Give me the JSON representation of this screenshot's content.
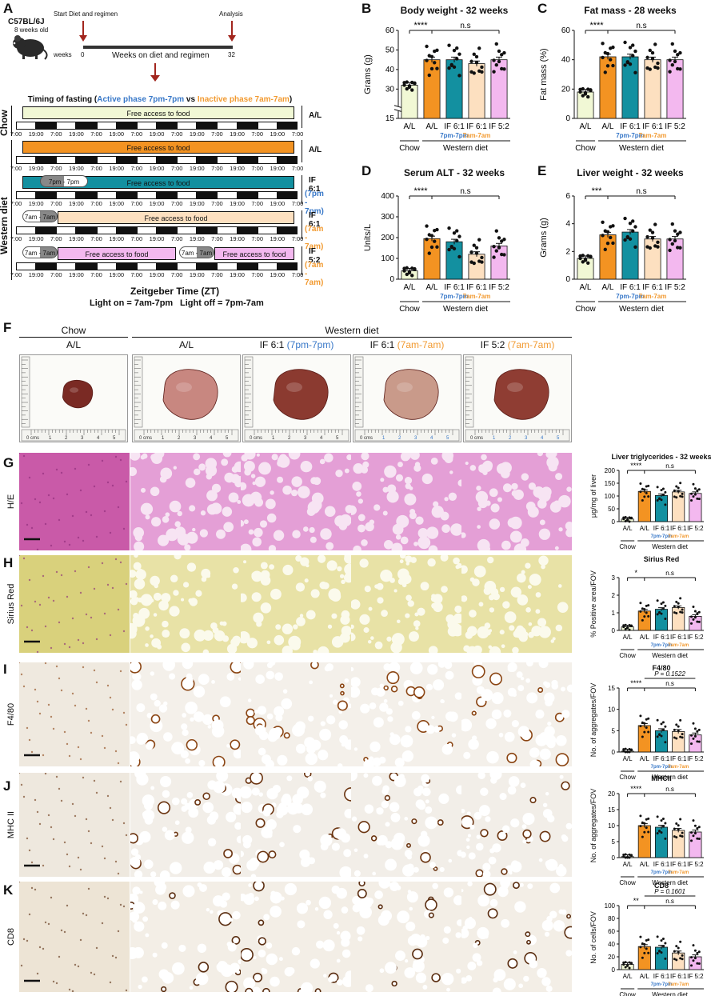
{
  "panels": {
    "A": "A",
    "B": "B",
    "C": "C",
    "D": "D",
    "E": "E",
    "F": "F",
    "G": "G",
    "H": "H",
    "I": "I",
    "J": "J",
    "K": "K"
  },
  "panelA": {
    "mouse_strain": "C57BL/6J",
    "mouse_age": "8 weeks old",
    "start_label": "Start Diet and regimen",
    "analysis_label": "Analysis",
    "weeks_label": "weeks",
    "week0": "0",
    "week32": "32",
    "timeline_label": "Weeks on diet and regimen",
    "fasting_title_pre": "Timing of fasting (",
    "fasting_active": "Active phase 7pm-7pm",
    "fasting_vs": " vs ",
    "fasting_inactive": "Inactive phase 7am-7am",
    "fasting_close": ")",
    "chow_label": "Chow",
    "western_label": "Western diet",
    "free_access": "Free access to food",
    "fast_active_label": "7pm - 7pm",
    "fast_inactive_label": "7am - 7am",
    "ticks": [
      "7:00",
      "19:00",
      "7:00",
      "19:00",
      "7:00",
      "19:00",
      "7:00",
      "19:00",
      "7:00",
      "19:00",
      "7:00",
      "19:00",
      "7:00",
      "19:00",
      "7:00"
    ],
    "regimens": [
      {
        "line1": "A/L",
        "line2": ""
      },
      {
        "line1": "A/L",
        "line2": ""
      },
      {
        "line1": "IF 6:1",
        "line2": "(7pm - 7pm)"
      },
      {
        "line1": "IF 6:1",
        "line2": "(7am - 7am)"
      },
      {
        "line1": "IF 5:2",
        "line2": "(7am - 7am)"
      }
    ],
    "zt_label": "Zeitgeber Time (ZT)",
    "light_on": "Light on = 7am-7pm",
    "light_off": "Light off = 7pm-7am"
  },
  "colors": {
    "chow": "#f1f8d5",
    "al": "#f39322",
    "if61a": "#1390a0",
    "if61i": "#fde0c0",
    "if52": "#f3b8ef",
    "active_text": "#3878c8",
    "inactive_text": "#f29a30",
    "arrow": "#a2261e"
  },
  "group_labels": [
    "A/L",
    "A/L",
    "IF 6:1",
    "IF 6:1",
    "IF 5:2"
  ],
  "group_sub": [
    "",
    "",
    "7pm-7pm",
    "7am-7am",
    ""
  ],
  "chow_group": "Chow",
  "western_group": "Western diet",
  "chart_data": [
    {
      "id": "B",
      "type": "bar",
      "title": "Body weight - 32 weeks",
      "ylabel": "Grams (g)",
      "ylim": [
        15,
        60
      ],
      "yticks": [
        "15",
        "30",
        "40",
        "50",
        "60"
      ],
      "values": [
        32,
        45,
        45,
        43,
        45
      ],
      "sig": [
        "****",
        "n.s"
      ],
      "axis_break": true
    },
    {
      "id": "C",
      "type": "bar",
      "title": "Fat mass - 28 weeks",
      "ylabel": "Fat mass (%)",
      "ylim": [
        0,
        60
      ],
      "yticks": [
        "0",
        "20",
        "40",
        "60"
      ],
      "values": [
        18,
        42,
        42,
        40,
        40
      ],
      "sig": [
        "****",
        "n.s"
      ]
    },
    {
      "id": "D",
      "type": "bar",
      "title": "Serum ALT - 32 weeks",
      "ylabel": "Units/L",
      "ylim": [
        0,
        400
      ],
      "yticks": [
        "0",
        "100",
        "200",
        "300",
        "400"
      ],
      "values": [
        40,
        195,
        180,
        120,
        160
      ],
      "sig": [
        "****",
        "n.s"
      ]
    },
    {
      "id": "E",
      "type": "bar",
      "title": "Liver weight - 32 weeks",
      "ylabel": "Grams (g)",
      "ylim": [
        0,
        6
      ],
      "yticks": [
        "0",
        "2",
        "4",
        "6"
      ],
      "values": [
        1.5,
        3.2,
        3.4,
        2.9,
        2.9
      ],
      "sig": [
        "***",
        "n.s"
      ]
    },
    {
      "id": "G",
      "type": "bar",
      "title": "Liver triglycerides - 32 weeks",
      "ylabel": "µg/mg of liver",
      "ylim": [
        0,
        200
      ],
      "yticks": [
        "0",
        "50",
        "100",
        "150",
        "200"
      ],
      "values": [
        10,
        118,
        102,
        116,
        110
      ],
      "sig": [
        "****",
        "n.s"
      ]
    },
    {
      "id": "H",
      "type": "bar",
      "title": "Sirius Red",
      "ylabel": "% Positive area/FOV",
      "ylim": [
        0,
        3
      ],
      "yticks": [
        "0",
        "1",
        "2",
        "3"
      ],
      "values": [
        0.2,
        1.1,
        1.2,
        1.3,
        0.8
      ],
      "sig": [
        "*",
        "n.s"
      ]
    },
    {
      "id": "I",
      "type": "bar",
      "title": "F4/80",
      "ylabel": "No. of aggregates/FOV",
      "ylim": [
        0,
        15
      ],
      "yticks": [
        "0",
        "5",
        "10",
        "15"
      ],
      "values": [
        0.2,
        6.2,
        5.0,
        4.8,
        4.0
      ],
      "sig": [
        "****",
        "n.s"
      ],
      "pval": "P = 0.1522"
    },
    {
      "id": "J",
      "type": "bar",
      "title": "MHCII",
      "ylabel": "No. of aggregates/FOV",
      "ylim": [
        0,
        20
      ],
      "yticks": [
        "0",
        "5",
        "10",
        "15",
        "20"
      ],
      "values": [
        0.3,
        10,
        9.5,
        8.5,
        8
      ],
      "sig": [
        "****",
        "n.s"
      ]
    },
    {
      "id": "K",
      "type": "bar",
      "title": "CD8",
      "ylabel": "No. of cells/FOV",
      "ylim": [
        0,
        100
      ],
      "yticks": [
        "0",
        "20",
        "40",
        "60",
        "80",
        "100"
      ],
      "values": [
        8,
        36,
        35,
        26,
        20
      ],
      "sig": [
        "**",
        "n.s"
      ],
      "pval": "P = 0.1601"
    }
  ],
  "panelF": {
    "chow": "Chow",
    "western": "Western diet",
    "cols": [
      {
        "main": "A/L",
        "sub": ""
      },
      {
        "main": "A/L",
        "sub": ""
      },
      {
        "main": "IF 6:1 ",
        "sub": "(7pm-7pm)"
      },
      {
        "main": "IF 6:1 ",
        "sub": "(7am-7am)"
      },
      {
        "main": "IF 5:2 ",
        "sub": "(7am-7am)"
      }
    ],
    "ruler_label": "0 cms",
    "ruler_nums": [
      "1",
      "2",
      "3",
      "4",
      "5"
    ]
  },
  "histo_rows": [
    "H/E",
    "Sirius Red",
    "F4/80",
    "MHC II",
    "CD8"
  ]
}
